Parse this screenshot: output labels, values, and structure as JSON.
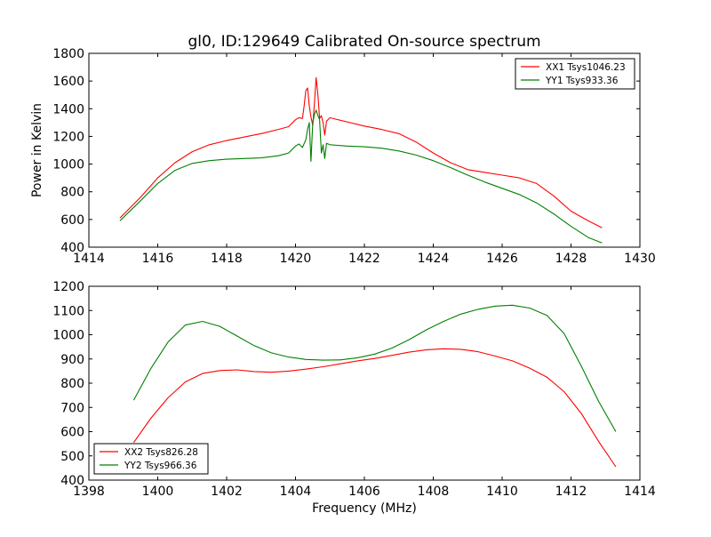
{
  "title": "gl0, ID:129649 Calibrated On-source spectrum",
  "chart_data": [
    {
      "type": "line",
      "ylabel": "Power in Kelvin",
      "xlabel": "",
      "xlim": [
        1414,
        1430
      ],
      "ylim": [
        400,
        1800
      ],
      "x_ticks": [
        "1414",
        "1416",
        "1418",
        "1420",
        "1422",
        "1424",
        "1426",
        "1428",
        "1430"
      ],
      "y_ticks": [
        "400",
        "600",
        "800",
        "1000",
        "1200",
        "1400",
        "1600",
        "1800"
      ],
      "grid": false,
      "legend": "top-right",
      "series": [
        {
          "name": "XX1 Tsys1046.23",
          "color": "#ff0000",
          "points": [
            [
              1414.9,
              610
            ],
            [
              1415.5,
              760
            ],
            [
              1416.0,
              900
            ],
            [
              1416.5,
              1010
            ],
            [
              1417.0,
              1090
            ],
            [
              1417.5,
              1140
            ],
            [
              1418.0,
              1170
            ],
            [
              1418.5,
              1195
            ],
            [
              1419.0,
              1220
            ],
            [
              1419.5,
              1250
            ],
            [
              1419.8,
              1270
            ],
            [
              1420.0,
              1320
            ],
            [
              1420.1,
              1335
            ],
            [
              1420.2,
              1330
            ],
            [
              1420.25,
              1420
            ],
            [
              1420.3,
              1530
            ],
            [
              1420.35,
              1550
            ],
            [
              1420.4,
              1420
            ],
            [
              1420.45,
              1340
            ],
            [
              1420.5,
              1280
            ],
            [
              1420.55,
              1440
            ],
            [
              1420.6,
              1625
            ],
            [
              1420.65,
              1500
            ],
            [
              1420.7,
              1330
            ],
            [
              1420.75,
              1350
            ],
            [
              1420.8,
              1300
            ],
            [
              1420.85,
              1210
            ],
            [
              1420.9,
              1310
            ],
            [
              1421.0,
              1335
            ],
            [
              1421.5,
              1305
            ],
            [
              1422.0,
              1275
            ],
            [
              1422.5,
              1250
            ],
            [
              1423.0,
              1220
            ],
            [
              1423.5,
              1160
            ],
            [
              1424.0,
              1080
            ],
            [
              1424.5,
              1010
            ],
            [
              1425.0,
              960
            ],
            [
              1425.5,
              940
            ],
            [
              1426.0,
              920
            ],
            [
              1426.5,
              900
            ],
            [
              1427.0,
              860
            ],
            [
              1427.5,
              770
            ],
            [
              1428.0,
              660
            ],
            [
              1428.5,
              590
            ],
            [
              1428.9,
              540
            ]
          ]
        },
        {
          "name": "YY1 Tsys933.36",
          "color": "#008000",
          "points": [
            [
              1414.9,
              590
            ],
            [
              1415.5,
              735
            ],
            [
              1416.0,
              860
            ],
            [
              1416.5,
              955
            ],
            [
              1417.0,
              1005
            ],
            [
              1417.5,
              1025
            ],
            [
              1418.0,
              1035
            ],
            [
              1418.5,
              1040
            ],
            [
              1419.0,
              1045
            ],
            [
              1419.5,
              1060
            ],
            [
              1419.8,
              1080
            ],
            [
              1420.0,
              1130
            ],
            [
              1420.1,
              1145
            ],
            [
              1420.2,
              1120
            ],
            [
              1420.3,
              1175
            ],
            [
              1420.35,
              1250
            ],
            [
              1420.4,
              1300
            ],
            [
              1420.45,
              1020
            ],
            [
              1420.5,
              1300
            ],
            [
              1420.55,
              1360
            ],
            [
              1420.6,
              1390
            ],
            [
              1420.65,
              1350
            ],
            [
              1420.7,
              1320
            ],
            [
              1420.75,
              1080
            ],
            [
              1420.8,
              1140
            ],
            [
              1420.85,
              1040
            ],
            [
              1420.9,
              1150
            ],
            [
              1421.0,
              1140
            ],
            [
              1421.5,
              1130
            ],
            [
              1422.0,
              1125
            ],
            [
              1422.5,
              1115
            ],
            [
              1423.0,
              1095
            ],
            [
              1423.5,
              1065
            ],
            [
              1424.0,
              1025
            ],
            [
              1424.5,
              975
            ],
            [
              1425.0,
              920
            ],
            [
              1425.5,
              870
            ],
            [
              1426.0,
              825
            ],
            [
              1426.5,
              780
            ],
            [
              1427.0,
              720
            ],
            [
              1427.5,
              640
            ],
            [
              1428.0,
              550
            ],
            [
              1428.5,
              470
            ],
            [
              1428.9,
              430
            ]
          ]
        }
      ]
    },
    {
      "type": "line",
      "xlabel": "Frequency (MHz)",
      "ylabel": "",
      "xlim": [
        1398,
        1414
      ],
      "ylim": [
        400,
        1200
      ],
      "x_ticks": [
        "1398",
        "1400",
        "1402",
        "1404",
        "1406",
        "1408",
        "1410",
        "1412",
        "1414"
      ],
      "y_ticks": [
        "400",
        "500",
        "600",
        "700",
        "800",
        "900",
        "1000",
        "1100",
        "1200"
      ],
      "grid": false,
      "legend": "bottom-left",
      "series": [
        {
          "name": "XX2 Tsys826.28",
          "color": "#ff0000",
          "points": [
            [
              1399.3,
              555
            ],
            [
              1399.8,
              655
            ],
            [
              1400.3,
              740
            ],
            [
              1400.8,
              805
            ],
            [
              1401.3,
              840
            ],
            [
              1401.8,
              852
            ],
            [
              1402.3,
              855
            ],
            [
              1402.8,
              848
            ],
            [
              1403.3,
              845
            ],
            [
              1403.8,
              850
            ],
            [
              1404.3,
              858
            ],
            [
              1404.8,
              868
            ],
            [
              1405.3,
              880
            ],
            [
              1405.8,
              892
            ],
            [
              1406.3,
              902
            ],
            [
              1406.8,
              915
            ],
            [
              1407.3,
              928
            ],
            [
              1407.8,
              938
            ],
            [
              1408.3,
              942
            ],
            [
              1408.8,
              940
            ],
            [
              1409.3,
              930
            ],
            [
              1409.8,
              912
            ],
            [
              1410.3,
              892
            ],
            [
              1410.8,
              862
            ],
            [
              1411.3,
              825
            ],
            [
              1411.8,
              765
            ],
            [
              1412.3,
              675
            ],
            [
              1412.8,
              560
            ],
            [
              1413.3,
              455
            ]
          ]
        },
        {
          "name": "YY2 Tsys966.36",
          "color": "#008000",
          "points": [
            [
              1399.3,
              730
            ],
            [
              1399.8,
              860
            ],
            [
              1400.3,
              970
            ],
            [
              1400.8,
              1040
            ],
            [
              1401.3,
              1055
            ],
            [
              1401.8,
              1035
            ],
            [
              1402.3,
              995
            ],
            [
              1402.8,
              955
            ],
            [
              1403.3,
              925
            ],
            [
              1403.8,
              908
            ],
            [
              1404.3,
              898
            ],
            [
              1404.8,
              895
            ],
            [
              1405.3,
              896
            ],
            [
              1405.8,
              905
            ],
            [
              1406.3,
              920
            ],
            [
              1406.8,
              945
            ],
            [
              1407.3,
              980
            ],
            [
              1407.8,
              1020
            ],
            [
              1408.3,
              1055
            ],
            [
              1408.8,
              1085
            ],
            [
              1409.3,
              1105
            ],
            [
              1409.8,
              1118
            ],
            [
              1410.3,
              1122
            ],
            [
              1410.8,
              1110
            ],
            [
              1411.3,
              1080
            ],
            [
              1411.8,
              1005
            ],
            [
              1412.3,
              870
            ],
            [
              1412.8,
              725
            ],
            [
              1413.3,
              600
            ]
          ]
        }
      ]
    }
  ]
}
